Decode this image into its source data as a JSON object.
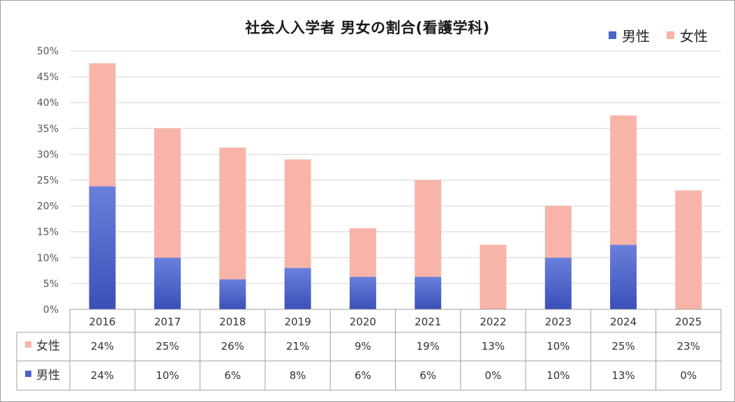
{
  "chart_data": {
    "type": "bar",
    "stacked": true,
    "title": "社会人入学者 男女の割合(看護学科)",
    "categories": [
      "2016",
      "2017",
      "2018",
      "2019",
      "2020",
      "2021",
      "2022",
      "2023",
      "2024",
      "2025"
    ],
    "series": [
      {
        "name": "男性",
        "color": "#4a64c8",
        "values": [
          0.238,
          0.1,
          0.058,
          0.08,
          0.063,
          0.063,
          0.0,
          0.1,
          0.125,
          0.0
        ],
        "labels": [
          "24%",
          "10%",
          "6%",
          "8%",
          "6%",
          "6%",
          "0%",
          "10%",
          "13%",
          "0%"
        ]
      },
      {
        "name": "女性",
        "color": "#f8b4a8",
        "values": [
          0.238,
          0.25,
          0.255,
          0.21,
          0.094,
          0.187,
          0.125,
          0.1,
          0.25,
          0.23
        ],
        "labels": [
          "24%",
          "25%",
          "26%",
          "21%",
          "9%",
          "19%",
          "13%",
          "10%",
          "25%",
          "23%"
        ]
      }
    ],
    "ylim": [
      0,
      0.5
    ],
    "yticks": [
      "0%",
      "5%",
      "10%",
      "15%",
      "20%",
      "25%",
      "30%",
      "35%",
      "40%",
      "45%",
      "50%"
    ],
    "grid": true,
    "legend": "top-right",
    "data_table": true
  }
}
